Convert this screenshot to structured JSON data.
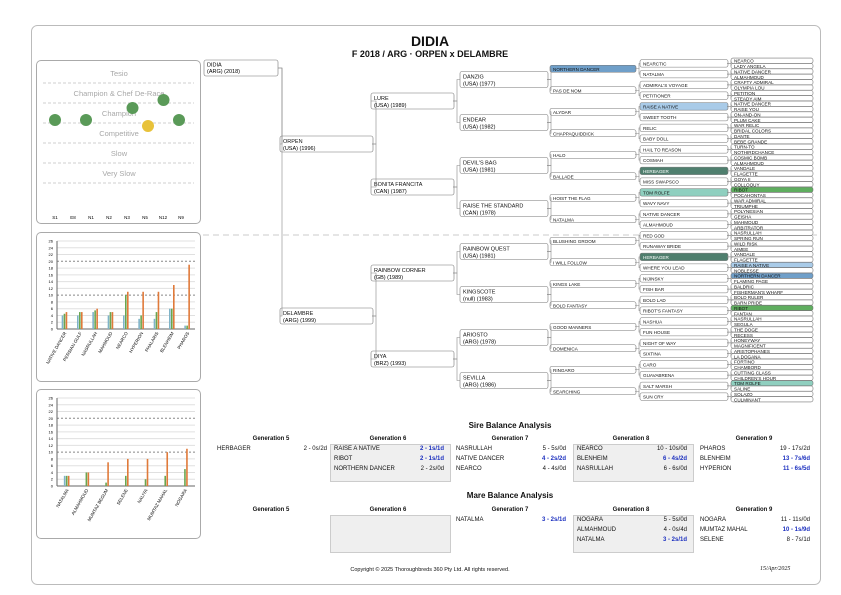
{
  "header": {
    "title": "DIDIA",
    "subtitle": "F 2018 / ARG · ORPEN x DELAMBRE"
  },
  "scale_chart": {
    "levels": [
      "Tesio",
      "Champion & Chef De-Race",
      "Champion",
      "Competitive",
      "Slow",
      "Very Slow"
    ],
    "columns": [
      "S1",
      "E8",
      "N1",
      "N2",
      "N3",
      "N5",
      "N12",
      "N9"
    ],
    "dots": [
      {
        "col": 1,
        "level": 0.0,
        "color": "#5a9a58"
      },
      {
        "col": 3,
        "level": 0.0,
        "color": "#5a9a58"
      },
      {
        "col": 7,
        "level": 2.3,
        "color": "#5a9a58"
      },
      {
        "col": 5,
        "level": 2.7,
        "color": "#5a9a58"
      },
      {
        "col": 0,
        "level": 3.3,
        "color": "#5a9a58"
      },
      {
        "col": 2,
        "level": 3.3,
        "color": "#5a9a58"
      },
      {
        "col": 8,
        "level": 3.3,
        "color": "#5a9a58"
      },
      {
        "col": 6,
        "level": 3.6,
        "color": "#e8c23a"
      }
    ]
  },
  "chart_data": [
    {
      "type": "bar",
      "categories": [
        "NATIVE DANCER",
        "PERSIAN GULF",
        "NASRULLAH",
        "MAHMOUD",
        "NEARCO",
        "HYPERION",
        "PHALARIS",
        "BLENHEIM",
        "PHAROS"
      ],
      "ylim": [
        0,
        26
      ],
      "series": [
        {
          "values": [
            4,
            4,
            5,
            4,
            4,
            3,
            3,
            6,
            1
          ],
          "color": "#7fb3c8"
        },
        {
          "values": [
            4.5,
            5,
            5.5,
            5,
            10,
            4,
            5,
            6,
            1
          ],
          "color": "#6aa64f"
        },
        {
          "values": [
            5,
            5,
            6,
            5,
            11,
            11,
            11,
            13,
            19
          ],
          "color": "#e07a3a"
        }
      ]
    },
    {
      "type": "bar",
      "categories": [
        "NATALMA",
        "ALMAHMOUD",
        "MUMTAZ BEGUM",
        "SELENE",
        "NALIYA",
        "MUMTAZ MAHAL",
        "NOGARA"
      ],
      "ylim": [
        0,
        26
      ],
      "series": [
        {
          "values": [
            3,
            0,
            0,
            0,
            0,
            0,
            0
          ],
          "color": "#7fb3c8"
        },
        {
          "values": [
            3,
            4,
            1,
            3,
            2,
            3,
            5
          ],
          "color": "#6aa64f"
        },
        {
          "values": [
            3,
            4,
            7,
            8,
            8,
            10,
            11
          ],
          "color": "#e07a3a"
        }
      ]
    }
  ],
  "pedigree": {
    "subject": {
      "name": "DIDIA",
      "detail": "(ARG) (2018)"
    },
    "gen1": [
      {
        "name": "ORPEN",
        "detail": "(USA) (1996)"
      },
      {
        "name": "DELAMBRE",
        "detail": "(ARG) (1999)"
      }
    ],
    "gen2": [
      {
        "name": "LURE",
        "detail": "(USA) (1989)"
      },
      {
        "name": "BONITA FRANCITA",
        "detail": "(CAN) (1987)"
      },
      {
        "name": "RAINBOW CORNER",
        "detail": "(GB) (1989)"
      },
      {
        "name": "DIYA",
        "detail": "(BRZ) (1993)"
      }
    ],
    "gen3": [
      {
        "name": "DANZIG",
        "detail": "(USA) (1977)"
      },
      {
        "name": "ENDEAR",
        "detail": "(USA) (1982)"
      },
      {
        "name": "DEVIL'S BAG",
        "detail": "(USA) (1981)"
      },
      {
        "name": "RAISE THE STANDARD",
        "detail": "(CAN) (1978)"
      },
      {
        "name": "RAINBOW QUEST",
        "detail": "(USA) (1981)"
      },
      {
        "name": "KINGSCOTE",
        "detail": "(null) (1983)"
      },
      {
        "name": "ARIOSTO",
        "detail": "(ARG) (1978)"
      },
      {
        "name": "SEVILLA",
        "detail": "(ARG) (1986)"
      }
    ],
    "gen4": [
      {
        "name": "NORTHERN DANCER",
        "hl": "#6f9fc9"
      },
      {
        "name": "PAS DE NOM",
        "hl": ""
      },
      {
        "name": "ALYDAR",
        "hl": ""
      },
      {
        "name": "CHAPPAQUIDDICK",
        "hl": ""
      },
      {
        "name": "HALO",
        "hl": ""
      },
      {
        "name": "BALLADE",
        "hl": ""
      },
      {
        "name": "HOIST THE FLAG",
        "hl": ""
      },
      {
        "name": "NATALMA",
        "hl": ""
      },
      {
        "name": "BLUSHING GROOM",
        "hl": ""
      },
      {
        "name": "I WILL FOLLOW",
        "hl": ""
      },
      {
        "name": "KINGS LAKE",
        "hl": ""
      },
      {
        "name": "BOLD FANTASY",
        "hl": ""
      },
      {
        "name": "GOOD MANNERS",
        "hl": ""
      },
      {
        "name": "DOMENICA",
        "hl": ""
      },
      {
        "name": "RINGARO",
        "hl": ""
      },
      {
        "name": "SEARCHING",
        "hl": ""
      }
    ],
    "gen5": [
      {
        "name": "NEARCTIC",
        "hl": ""
      },
      {
        "name": "NATALMA",
        "hl": ""
      },
      {
        "name": "ADMIRAL'S VOYAGE",
        "hl": ""
      },
      {
        "name": "PETITIONER",
        "hl": ""
      },
      {
        "name": "RAISE A NATIVE",
        "hl": "#a9cbe8"
      },
      {
        "name": "SWEET TOOTH",
        "hl": ""
      },
      {
        "name": "RELIC",
        "hl": ""
      },
      {
        "name": "BABY DOLL",
        "hl": ""
      },
      {
        "name": "HAIL TO REASON",
        "hl": ""
      },
      {
        "name": "COSMAH",
        "hl": ""
      },
      {
        "name": "HERBAGER",
        "hl": "#4f7f6e"
      },
      {
        "name": "MISS SWAPSCO",
        "hl": ""
      },
      {
        "name": "TOM ROLFE",
        "hl": "#8fcfbf"
      },
      {
        "name": "WAVY NAVY",
        "hl": ""
      },
      {
        "name": "NATIVE DANCER",
        "hl": ""
      },
      {
        "name": "ALMAHMOUD",
        "hl": ""
      },
      {
        "name": "RED GOD",
        "hl": ""
      },
      {
        "name": "RUNAWAY BRIDE",
        "hl": ""
      },
      {
        "name": "HERBAGER",
        "hl": "#4f7f6e"
      },
      {
        "name": "WHERE YOU LEAD",
        "hl": ""
      },
      {
        "name": "NIJINSKY",
        "hl": ""
      },
      {
        "name": "FISH BAR",
        "hl": ""
      },
      {
        "name": "BOLD LAD",
        "hl": ""
      },
      {
        "name": "RIBOT'S FANTASY",
        "hl": ""
      },
      {
        "name": "NASHUA",
        "hl": ""
      },
      {
        "name": "FUN HOUSE",
        "hl": ""
      },
      {
        "name": "NIGHT OF WAY",
        "hl": ""
      },
      {
        "name": "SIXTINA",
        "hl": ""
      },
      {
        "name": "CARO",
        "hl": ""
      },
      {
        "name": "GUAVABRENA",
        "hl": ""
      },
      {
        "name": "SALT MARSH",
        "hl": ""
      },
      {
        "name": "SUN CRY",
        "hl": ""
      }
    ],
    "gen6": [
      {
        "name": "NEARCO",
        "hl": ""
      },
      {
        "name": "LADY ANGELA",
        "hl": ""
      },
      {
        "name": "NATIVE DANCER",
        "hl": ""
      },
      {
        "name": "ALMAHMOUD",
        "hl": ""
      },
      {
        "name": "CRAFTY ADMIRAL",
        "hl": ""
      },
      {
        "name": "OLYMPIA LOU",
        "hl": ""
      },
      {
        "name": "PETITION",
        "hl": ""
      },
      {
        "name": "STEADY AIM",
        "hl": ""
      },
      {
        "name": "NATIVE DANCER",
        "hl": ""
      },
      {
        "name": "RAISE YOU",
        "hl": ""
      },
      {
        "name": "ON-AND-ON",
        "hl": ""
      },
      {
        "name": "PLUM CAKE",
        "hl": ""
      },
      {
        "name": "WAR RELIC",
        "hl": ""
      },
      {
        "name": "BRIDAL COLORS",
        "hl": ""
      },
      {
        "name": "DANTE",
        "hl": ""
      },
      {
        "name": "BEBE GRANDE",
        "hl": ""
      },
      {
        "name": "TURN-TO",
        "hl": ""
      },
      {
        "name": "NOTHIRDCHANCE",
        "hl": ""
      },
      {
        "name": "COSMIC BOMB",
        "hl": ""
      },
      {
        "name": "ALMAHMOUD",
        "hl": ""
      },
      {
        "name": "VANDALE",
        "hl": ""
      },
      {
        "name": "FLAGETTE",
        "hl": ""
      },
      {
        "name": "GOYA II",
        "hl": ""
      },
      {
        "name": "COLLOQUY",
        "hl": ""
      },
      {
        "name": "RIBOT",
        "hl": "#5fae5f"
      },
      {
        "name": "POCAHONTAS",
        "hl": ""
      },
      {
        "name": "WAR ADMIRAL",
        "hl": ""
      },
      {
        "name": "TRIUMPHE",
        "hl": ""
      },
      {
        "name": "POLYNESIAN",
        "hl": ""
      },
      {
        "name": "GEISHA",
        "hl": ""
      },
      {
        "name": "MAHMOUD",
        "hl": ""
      },
      {
        "name": "ARBITRATOR",
        "hl": ""
      },
      {
        "name": "NASRULLAH",
        "hl": ""
      },
      {
        "name": "SPRING RUN",
        "hl": ""
      },
      {
        "name": "WILD RISK",
        "hl": ""
      },
      {
        "name": "AIMEE",
        "hl": ""
      },
      {
        "name": "VANDALE",
        "hl": ""
      },
      {
        "name": "FLAGETTE",
        "hl": ""
      },
      {
        "name": "RAISE A NATIVE",
        "hl": "#a9cbe8"
      },
      {
        "name": "NOBLESSE",
        "hl": ""
      },
      {
        "name": "NORTHERN DANCER",
        "hl": "#6f9fc9"
      },
      {
        "name": "FLAMING PAGE",
        "hl": ""
      },
      {
        "name": "BALDRIC",
        "hl": ""
      },
      {
        "name": "FISHERMAN'S WHARF",
        "hl": ""
      },
      {
        "name": "BOLD RULER",
        "hl": ""
      },
      {
        "name": "BARN PRIDE",
        "hl": ""
      },
      {
        "name": "RIBOT",
        "hl": "#5fae5f"
      },
      {
        "name": "FANTAN",
        "hl": ""
      },
      {
        "name": "NASRULLAH",
        "hl": ""
      },
      {
        "name": "SEGULA",
        "hl": ""
      },
      {
        "name": "THE DOGE",
        "hl": ""
      },
      {
        "name": "RECESS",
        "hl": ""
      },
      {
        "name": "HONEYWAY",
        "hl": ""
      },
      {
        "name": "MAGNIFICENT",
        "hl": ""
      },
      {
        "name": "ARISTOPHANES",
        "hl": ""
      },
      {
        "name": "LA DOGANA",
        "hl": ""
      },
      {
        "name": "FORTINO",
        "hl": ""
      },
      {
        "name": "CHAMBORD",
        "hl": ""
      },
      {
        "name": "CUTTING CLASS",
        "hl": ""
      },
      {
        "name": "CHILDREN'S HOUR",
        "hl": ""
      },
      {
        "name": "TOM ROLFE",
        "hl": "#8fcfbf"
      },
      {
        "name": "SALINE",
        "hl": ""
      },
      {
        "name": "SOLAZO",
        "hl": ""
      },
      {
        "name": "CULMINANT",
        "hl": ""
      }
    ]
  },
  "sire_balance": {
    "title": "Sire Balance Analysis",
    "columns": [
      {
        "head": "Generation 5",
        "shaded": false,
        "rows": [
          {
            "name": "HERBAGER",
            "val": "2 - 0s/2d",
            "blue": false
          }
        ]
      },
      {
        "head": "Generation 6",
        "shaded": true,
        "rows": [
          {
            "name": "RAISE A NATIVE",
            "val": "2 - 1s/1d",
            "blue": true
          },
          {
            "name": "RIBOT",
            "val": "2 - 1s/1d",
            "blue": true
          },
          {
            "name": "NORTHERN DANCER",
            "val": "2 - 2s/0d",
            "blue": false
          }
        ]
      },
      {
        "head": "Generation 7",
        "shaded": false,
        "rows": [
          {
            "name": "NASRULLAH",
            "val": "5 - 5s/0d",
            "blue": false
          },
          {
            "name": "NATIVE DANCER",
            "val": "4 - 2s/2d",
            "blue": true
          },
          {
            "name": "NEARCO",
            "val": "4 - 4s/0d",
            "blue": false
          }
        ]
      },
      {
        "head": "Generation 8",
        "shaded": true,
        "rows": [
          {
            "name": "NEARCO",
            "val": "10 - 10s/0d",
            "blue": false
          },
          {
            "name": "BLENHEIM",
            "val": "6 - 4s/2d",
            "blue": true
          },
          {
            "name": "NASRULLAH",
            "val": "6 - 6s/0d",
            "blue": false
          }
        ]
      },
      {
        "head": "Generation 9",
        "shaded": false,
        "rows": [
          {
            "name": "PHAROS",
            "val": "19 - 17s/2d",
            "blue": false
          },
          {
            "name": "BLENHEIM",
            "val": "13 - 7s/6d",
            "blue": true
          },
          {
            "name": "HYPERION",
            "val": "11 - 6s/5d",
            "blue": true
          }
        ]
      }
    ]
  },
  "mare_balance": {
    "title": "Mare Balance Analysis",
    "columns": [
      {
        "head": "Generation 5",
        "shaded": false,
        "rows": []
      },
      {
        "head": "Generation 6",
        "shaded": true,
        "rows": []
      },
      {
        "head": "Generation 7",
        "shaded": false,
        "rows": [
          {
            "name": "NATALMA",
            "val": "3 - 2s/1d",
            "blue": true
          }
        ]
      },
      {
        "head": "Generation 8",
        "shaded": true,
        "rows": [
          {
            "name": "NOGARA",
            "val": "5 - 5s/0d",
            "blue": false
          },
          {
            "name": "ALMAHMOUD",
            "val": "4 - 0s/4d",
            "blue": false
          },
          {
            "name": "NATALMA",
            "val": "3 - 2s/1d",
            "blue": true
          }
        ]
      },
      {
        "head": "Generation 9",
        "shaded": false,
        "rows": [
          {
            "name": "NOGARA",
            "val": "11 - 11s/0d",
            "blue": false
          },
          {
            "name": "MUMTAZ MAHAL",
            "val": "10 - 1s/9d",
            "blue": true
          },
          {
            "name": "SELENE",
            "val": "8 - 7s/1d",
            "blue": false
          }
        ]
      }
    ]
  },
  "footer": {
    "copyright": "Copyright © 2025 Thoroughbreds 360 Pty Ltd. All rights reserved.",
    "date": "15/Apr/2025"
  }
}
